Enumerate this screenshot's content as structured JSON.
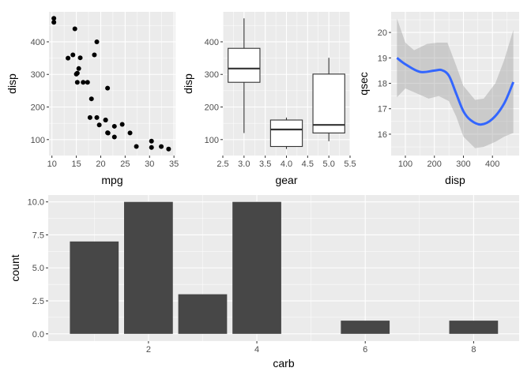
{
  "chart_data": [
    {
      "type": "scatter",
      "xlabel": "mpg",
      "ylabel": "disp",
      "xlim": [
        9.4,
        35.3
      ],
      "ylim": [
        51,
        492
      ],
      "xticks": [
        10,
        15,
        20,
        25,
        30,
        35
      ],
      "yticks": [
        100,
        200,
        300,
        400
      ],
      "grid": true,
      "point_color": "#000000",
      "points": [
        [
          21,
          160
        ],
        [
          21,
          160
        ],
        [
          22.8,
          108
        ],
        [
          21.4,
          258
        ],
        [
          18.7,
          360
        ],
        [
          18.1,
          225
        ],
        [
          14.3,
          360
        ],
        [
          24.4,
          146.7
        ],
        [
          22.8,
          140.8
        ],
        [
          19.2,
          167.6
        ],
        [
          17.8,
          167.6
        ],
        [
          16.4,
          275.8
        ],
        [
          17.3,
          275.8
        ],
        [
          15.2,
          275.8
        ],
        [
          10.4,
          472
        ],
        [
          10.4,
          460
        ],
        [
          14.7,
          440
        ],
        [
          32.4,
          78.7
        ],
        [
          30.4,
          75.7
        ],
        [
          33.9,
          71.1
        ],
        [
          21.5,
          120.1
        ],
        [
          15.5,
          318
        ],
        [
          15.2,
          304
        ],
        [
          13.3,
          350
        ],
        [
          19.2,
          400
        ],
        [
          27.3,
          79
        ],
        [
          26,
          120.3
        ],
        [
          30.4,
          95.1
        ],
        [
          15.8,
          351
        ],
        [
          19.7,
          145
        ],
        [
          15,
          301
        ],
        [
          21.4,
          121
        ]
      ]
    },
    {
      "type": "boxplot",
      "xlabel": "gear",
      "ylabel": "disp",
      "xlim": [
        2.5,
        5.5
      ],
      "ylim": [
        51,
        492
      ],
      "xticks": [
        "2.5",
        "3.0",
        "3.5",
        "4.0",
        "4.5",
        "5.0",
        "5.5"
      ],
      "yticks": [
        100,
        200,
        300,
        400
      ],
      "grid": true,
      "boxes": [
        {
          "x": 3,
          "min": 120.1,
          "q1": 275.8,
          "median": 318,
          "q3": 380,
          "max": 472
        },
        {
          "x": 4,
          "min": 71.1,
          "q1": 78.85,
          "median": 130.9,
          "q3": 160,
          "max": 167.6
        },
        {
          "x": 5,
          "min": 95.1,
          "q1": 120.3,
          "median": 145,
          "q3": 301,
          "max": 351
        }
      ]
    },
    {
      "type": "line",
      "xlabel": "disp",
      "ylabel": "qsec",
      "xlim": [
        51,
        492
      ],
      "ylim": [
        15.16,
        20.81
      ],
      "xticks": [
        100,
        200,
        300,
        400
      ],
      "yticks": [
        16,
        17,
        18,
        19,
        20
      ],
      "grid": true,
      "line_color": "#3366FF",
      "band_color": "#999999",
      "smooth": [
        [
          71,
          19.0
        ],
        [
          100,
          18.75
        ],
        [
          150,
          18.45
        ],
        [
          200,
          18.5
        ],
        [
          225,
          18.52
        ],
        [
          250,
          18.3
        ],
        [
          275,
          17.6
        ],
        [
          300,
          16.9
        ],
        [
          325,
          16.55
        ],
        [
          360,
          16.38
        ],
        [
          400,
          16.6
        ],
        [
          440,
          17.2
        ],
        [
          472,
          18.05
        ]
      ],
      "band_upper": [
        [
          71,
          20.55
        ],
        [
          100,
          19.6
        ],
        [
          130,
          19.3
        ],
        [
          175,
          19.55
        ],
        [
          210,
          19.6
        ],
        [
          245,
          19.6
        ],
        [
          275,
          18.7
        ],
        [
          300,
          17.9
        ],
        [
          340,
          17.35
        ],
        [
          370,
          17.4
        ],
        [
          410,
          18.0
        ],
        [
          440,
          18.9
        ],
        [
          472,
          20.1
        ]
      ],
      "band_lower": [
        [
          71,
          17.45
        ],
        [
          100,
          17.8
        ],
        [
          150,
          17.55
        ],
        [
          180,
          17.4
        ],
        [
          215,
          17.5
        ],
        [
          250,
          17.3
        ],
        [
          275,
          16.7
        ],
        [
          300,
          15.9
        ],
        [
          340,
          15.45
        ],
        [
          370,
          15.5
        ],
        [
          410,
          15.7
        ],
        [
          440,
          15.9
        ],
        [
          472,
          16.05
        ]
      ]
    },
    {
      "type": "bar",
      "xlabel": "carb",
      "ylabel": "count",
      "xlim": [
        0.15,
        8.84
      ],
      "ylim": [
        -0.55,
        10.52
      ],
      "xticks": [
        2,
        4,
        6,
        8
      ],
      "yticks": [
        "0.0",
        "2.5",
        "5.0",
        "7.5",
        "10.0"
      ],
      "grid": true,
      "bar_color": "#474747",
      "categories": [
        1,
        2,
        3,
        4,
        6,
        8
      ],
      "values": [
        7,
        10,
        3,
        10,
        1,
        1
      ]
    }
  ]
}
